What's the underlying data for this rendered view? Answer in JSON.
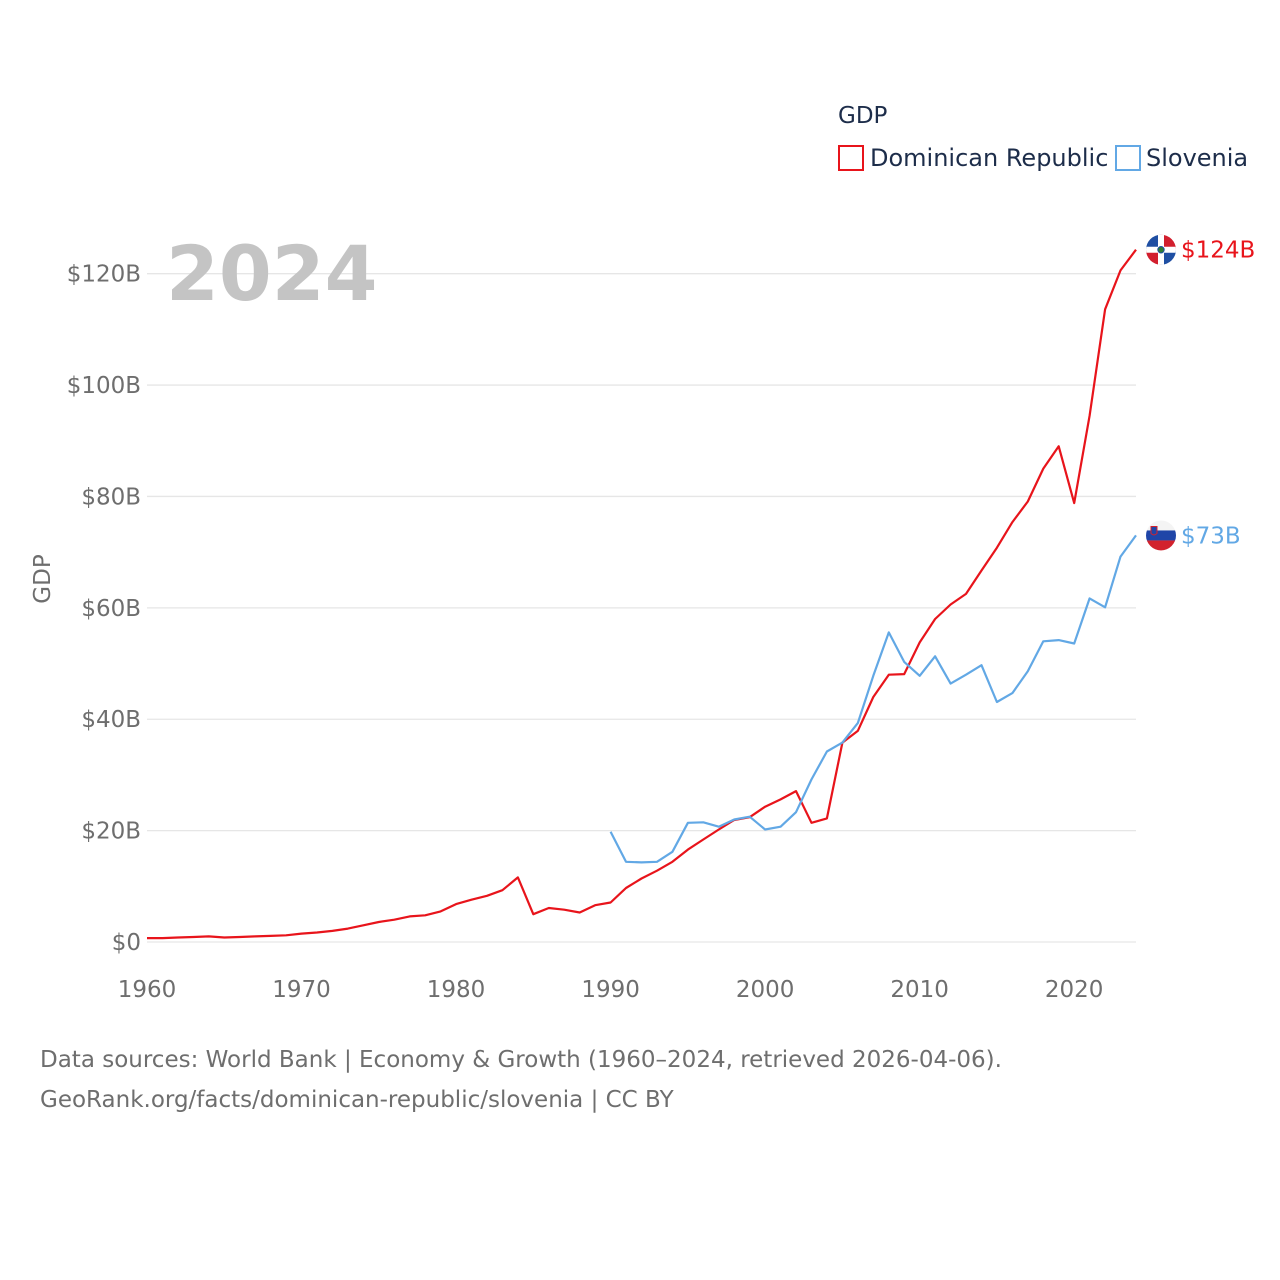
{
  "chart_data": {
    "type": "line",
    "title": "",
    "year_label": "2024",
    "ylabel": "GDP",
    "xlabel": "",
    "xlim": [
      1960,
      2024
    ],
    "ylim": [
      0,
      130
    ],
    "x_ticks": [
      1960,
      1970,
      1980,
      1990,
      2000,
      2010,
      2020
    ],
    "x_tick_labels": [
      "1960",
      "1970",
      "1980",
      "1990",
      "2000",
      "2010",
      "2020"
    ],
    "y_ticks": [
      0,
      20,
      40,
      60,
      80,
      100,
      120
    ],
    "y_tick_labels": [
      "$0",
      "$20B",
      "$40B",
      "$60B",
      "$80B",
      "$100B",
      "$120B"
    ],
    "legend": {
      "title": "GDP",
      "position": "top-right",
      "entries": [
        "Dominican Republic",
        "Slovenia"
      ]
    },
    "series": [
      {
        "name": "Dominican Republic",
        "color": "#e8141b",
        "end_label": "$124B",
        "flag": "dominican-republic-flag-icon",
        "x": [
          1960,
          1961,
          1962,
          1963,
          1964,
          1965,
          1966,
          1967,
          1968,
          1969,
          1970,
          1971,
          1972,
          1973,
          1974,
          1975,
          1976,
          1977,
          1978,
          1979,
          1980,
          1981,
          1982,
          1983,
          1984,
          1985,
          1986,
          1987,
          1988,
          1989,
          1990,
          1991,
          1992,
          1993,
          1994,
          1995,
          1996,
          1997,
          1998,
          1999,
          2000,
          2001,
          2002,
          2003,
          2004,
          2005,
          2006,
          2007,
          2008,
          2009,
          2010,
          2011,
          2012,
          2013,
          2014,
          2015,
          2016,
          2017,
          2018,
          2019,
          2020,
          2021,
          2022,
          2023,
          2024
        ],
        "values": [
          0.7,
          0.7,
          0.8,
          0.9,
          1.0,
          0.8,
          0.9,
          1.0,
          1.1,
          1.2,
          1.5,
          1.7,
          2.0,
          2.4,
          3.0,
          3.6,
          4.0,
          4.6,
          4.8,
          5.5,
          6.8,
          7.6,
          8.3,
          9.3,
          11.6,
          5.0,
          6.1,
          5.8,
          5.3,
          6.6,
          7.1,
          9.7,
          11.4,
          12.8,
          14.4,
          16.6,
          18.4,
          20.2,
          21.9,
          22.4,
          24.3,
          25.6,
          27.1,
          21.4,
          22.2,
          35.8,
          37.9,
          44.0,
          48.0,
          48.1,
          53.8,
          58.0,
          60.6,
          62.5,
          66.7,
          70.8,
          75.4,
          79.1,
          85.0,
          89.0,
          78.8,
          94.5,
          113.6,
          120.6,
          124.3
        ]
      },
      {
        "name": "Slovenia",
        "color": "#62a8e5",
        "end_label": "$73B",
        "flag": "slovenia-flag-icon",
        "x": [
          1990,
          1991,
          1992,
          1993,
          1994,
          1995,
          1996,
          1997,
          1998,
          1999,
          2000,
          2001,
          2002,
          2003,
          2004,
          2005,
          2006,
          2007,
          2008,
          2009,
          2010,
          2011,
          2012,
          2013,
          2014,
          2015,
          2016,
          2017,
          2018,
          2019,
          2020,
          2021,
          2022,
          2023,
          2024
        ],
        "values": [
          19.8,
          14.4,
          14.3,
          14.4,
          16.2,
          21.4,
          21.5,
          20.7,
          22.0,
          22.5,
          20.2,
          20.7,
          23.3,
          29.2,
          34.2,
          35.8,
          39.3,
          47.8,
          55.6,
          50.3,
          47.8,
          51.3,
          46.4,
          48.0,
          49.7,
          43.1,
          44.7,
          48.6,
          54.0,
          54.2,
          53.6,
          61.7,
          60.1,
          69.2,
          73.0
        ]
      }
    ]
  },
  "footer": {
    "line1": "Data sources: World Bank | Economy & Growth (1960–2024, retrieved 2026-04-06).",
    "line2": "GeoRank.org/facts/dominican-republic/slovenia | CC BY"
  }
}
